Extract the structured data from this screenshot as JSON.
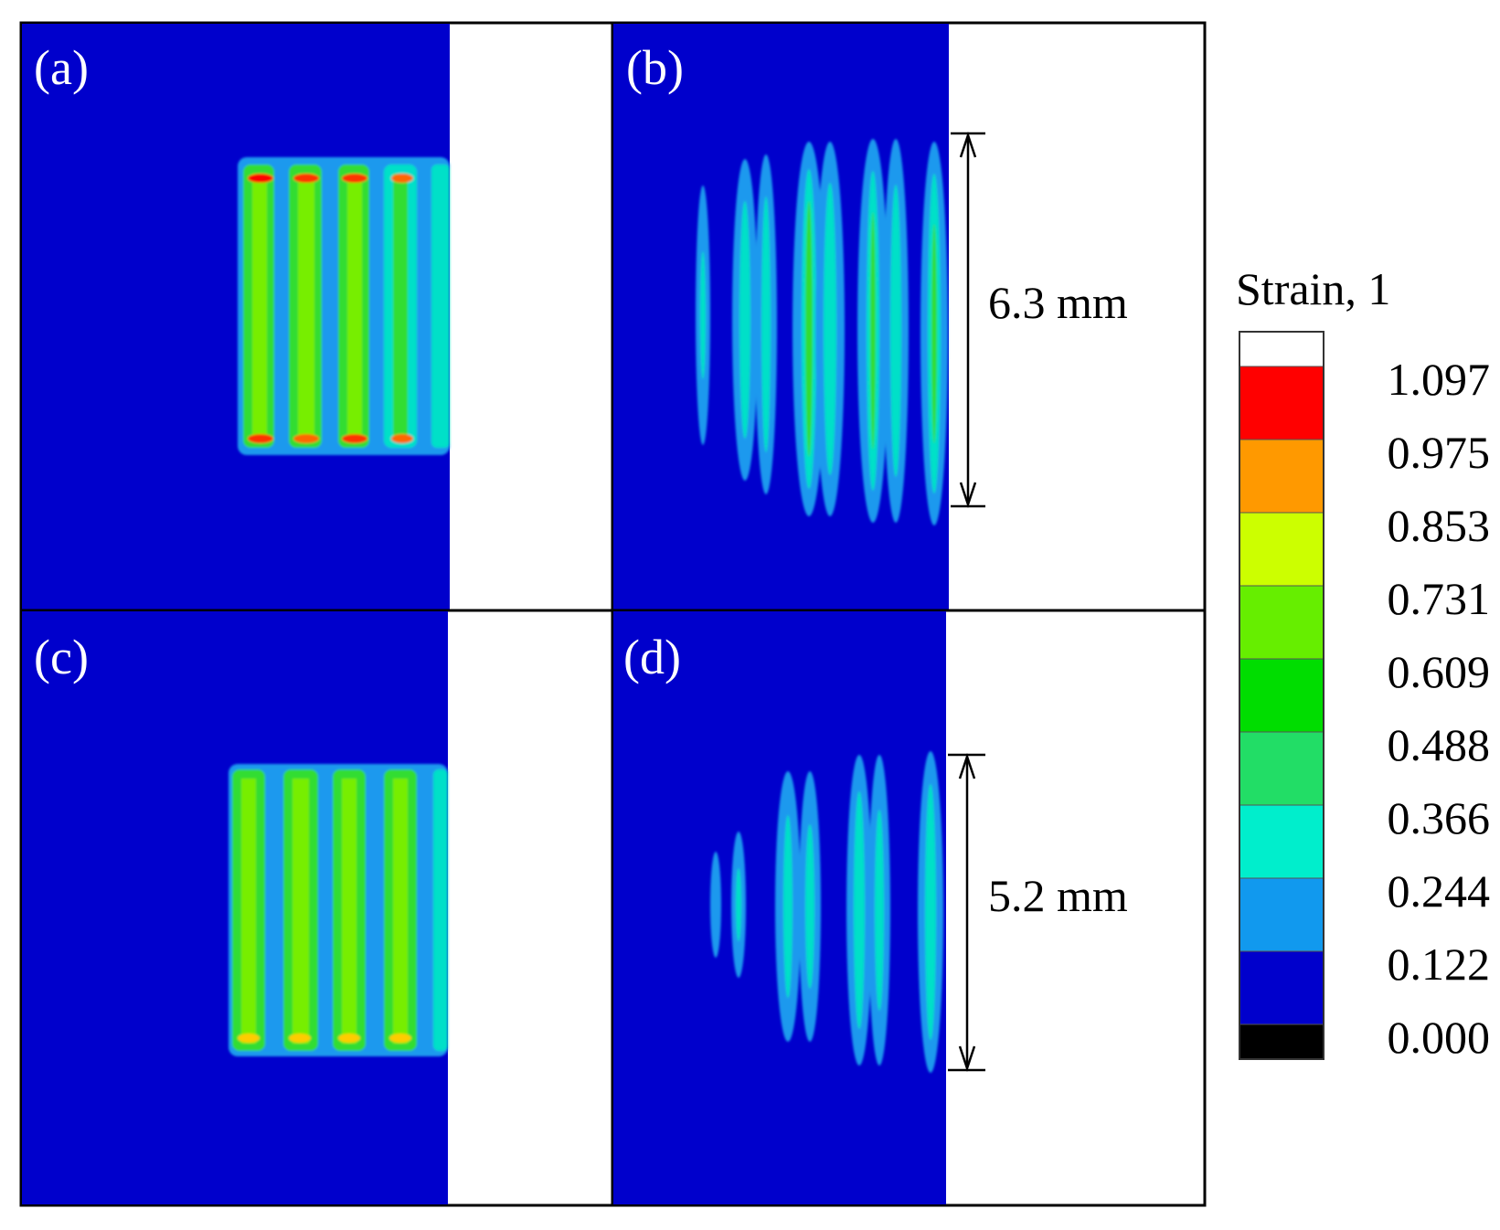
{
  "panels": [
    {
      "id": "a",
      "label": "(a)"
    },
    {
      "id": "b",
      "label": "(b)",
      "dimension": "6.3 mm"
    },
    {
      "id": "c",
      "label": "(c)"
    },
    {
      "id": "d",
      "label": "(d)",
      "dimension": "5.2 mm"
    }
  ],
  "legend": {
    "title": "Strain, 1",
    "values": [
      "1.097",
      "0.975",
      "0.853",
      "0.731",
      "0.609",
      "0.488",
      "0.366",
      "0.244",
      "0.122",
      "0.000"
    ],
    "colors": [
      "#ffffff",
      "#ff0000",
      "#ff9900",
      "#ccff00",
      "#66ee00",
      "#00dd00",
      "#22dd66",
      "#00eecc",
      "#1199ee",
      "#0000cc",
      "#000000"
    ]
  },
  "colors": {
    "background_field": "#0000cc",
    "band_outer": "#1a99ee",
    "band_mid": "#00e0c8",
    "band_inner": "#33dd33",
    "band_core": "#77ee00",
    "hot": "#ff0000",
    "warm": "#ffcc00"
  }
}
